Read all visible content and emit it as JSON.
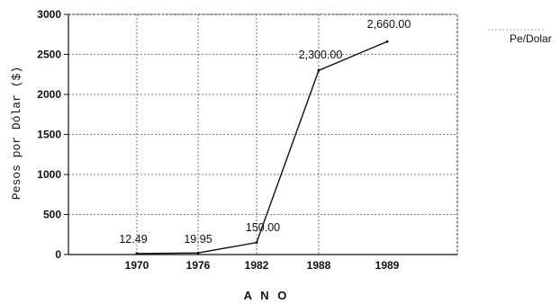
{
  "chart_data": {
    "type": "line",
    "title": "",
    "xlabel": "A N O",
    "ylabel": "Pesos por Dólar ($)",
    "categories": [
      "1970",
      "1976",
      "1982",
      "1988",
      "1989"
    ],
    "series": [
      {
        "name": "Pe/Dolar",
        "values": [
          12.49,
          19.95,
          150.0,
          2300.0,
          2660.0
        ],
        "data_labels": [
          "12.49",
          "19.95",
          "150.00",
          "2,300.00",
          "2,660.00"
        ],
        "color": "#111111"
      }
    ],
    "y_ticks": [
      "0",
      "500",
      "1000",
      "1500",
      "2000",
      "2500",
      "3000"
    ],
    "ylim": [
      0,
      3000
    ],
    "grid": true,
    "legend": {
      "position": "top-right",
      "label": "Pe/Dolar"
    }
  }
}
